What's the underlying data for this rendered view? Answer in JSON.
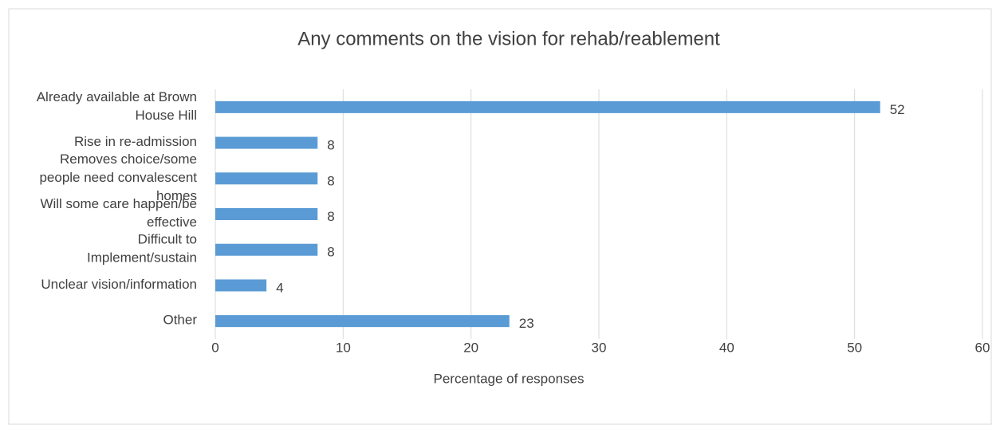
{
  "chart_data": {
    "type": "bar",
    "orientation": "horizontal",
    "title": "Any comments on the vision for rehab/reablement",
    "xlabel": "Percentage of responses",
    "categories": [
      "Already available at Brown House Hill",
      "Rise in re-admission",
      "Removes choice/some people need convalescent homes",
      "Will some care happen/be effective",
      "Difficult to Implement/sustain",
      "Unclear vision/information",
      "Other"
    ],
    "values": [
      52,
      8,
      8,
      8,
      8,
      4,
      23
    ],
    "color": "#5b9bd5",
    "xlim": [
      0,
      60
    ],
    "xticks": [
      0,
      10,
      20,
      30,
      40,
      50,
      60
    ],
    "grid": true
  }
}
